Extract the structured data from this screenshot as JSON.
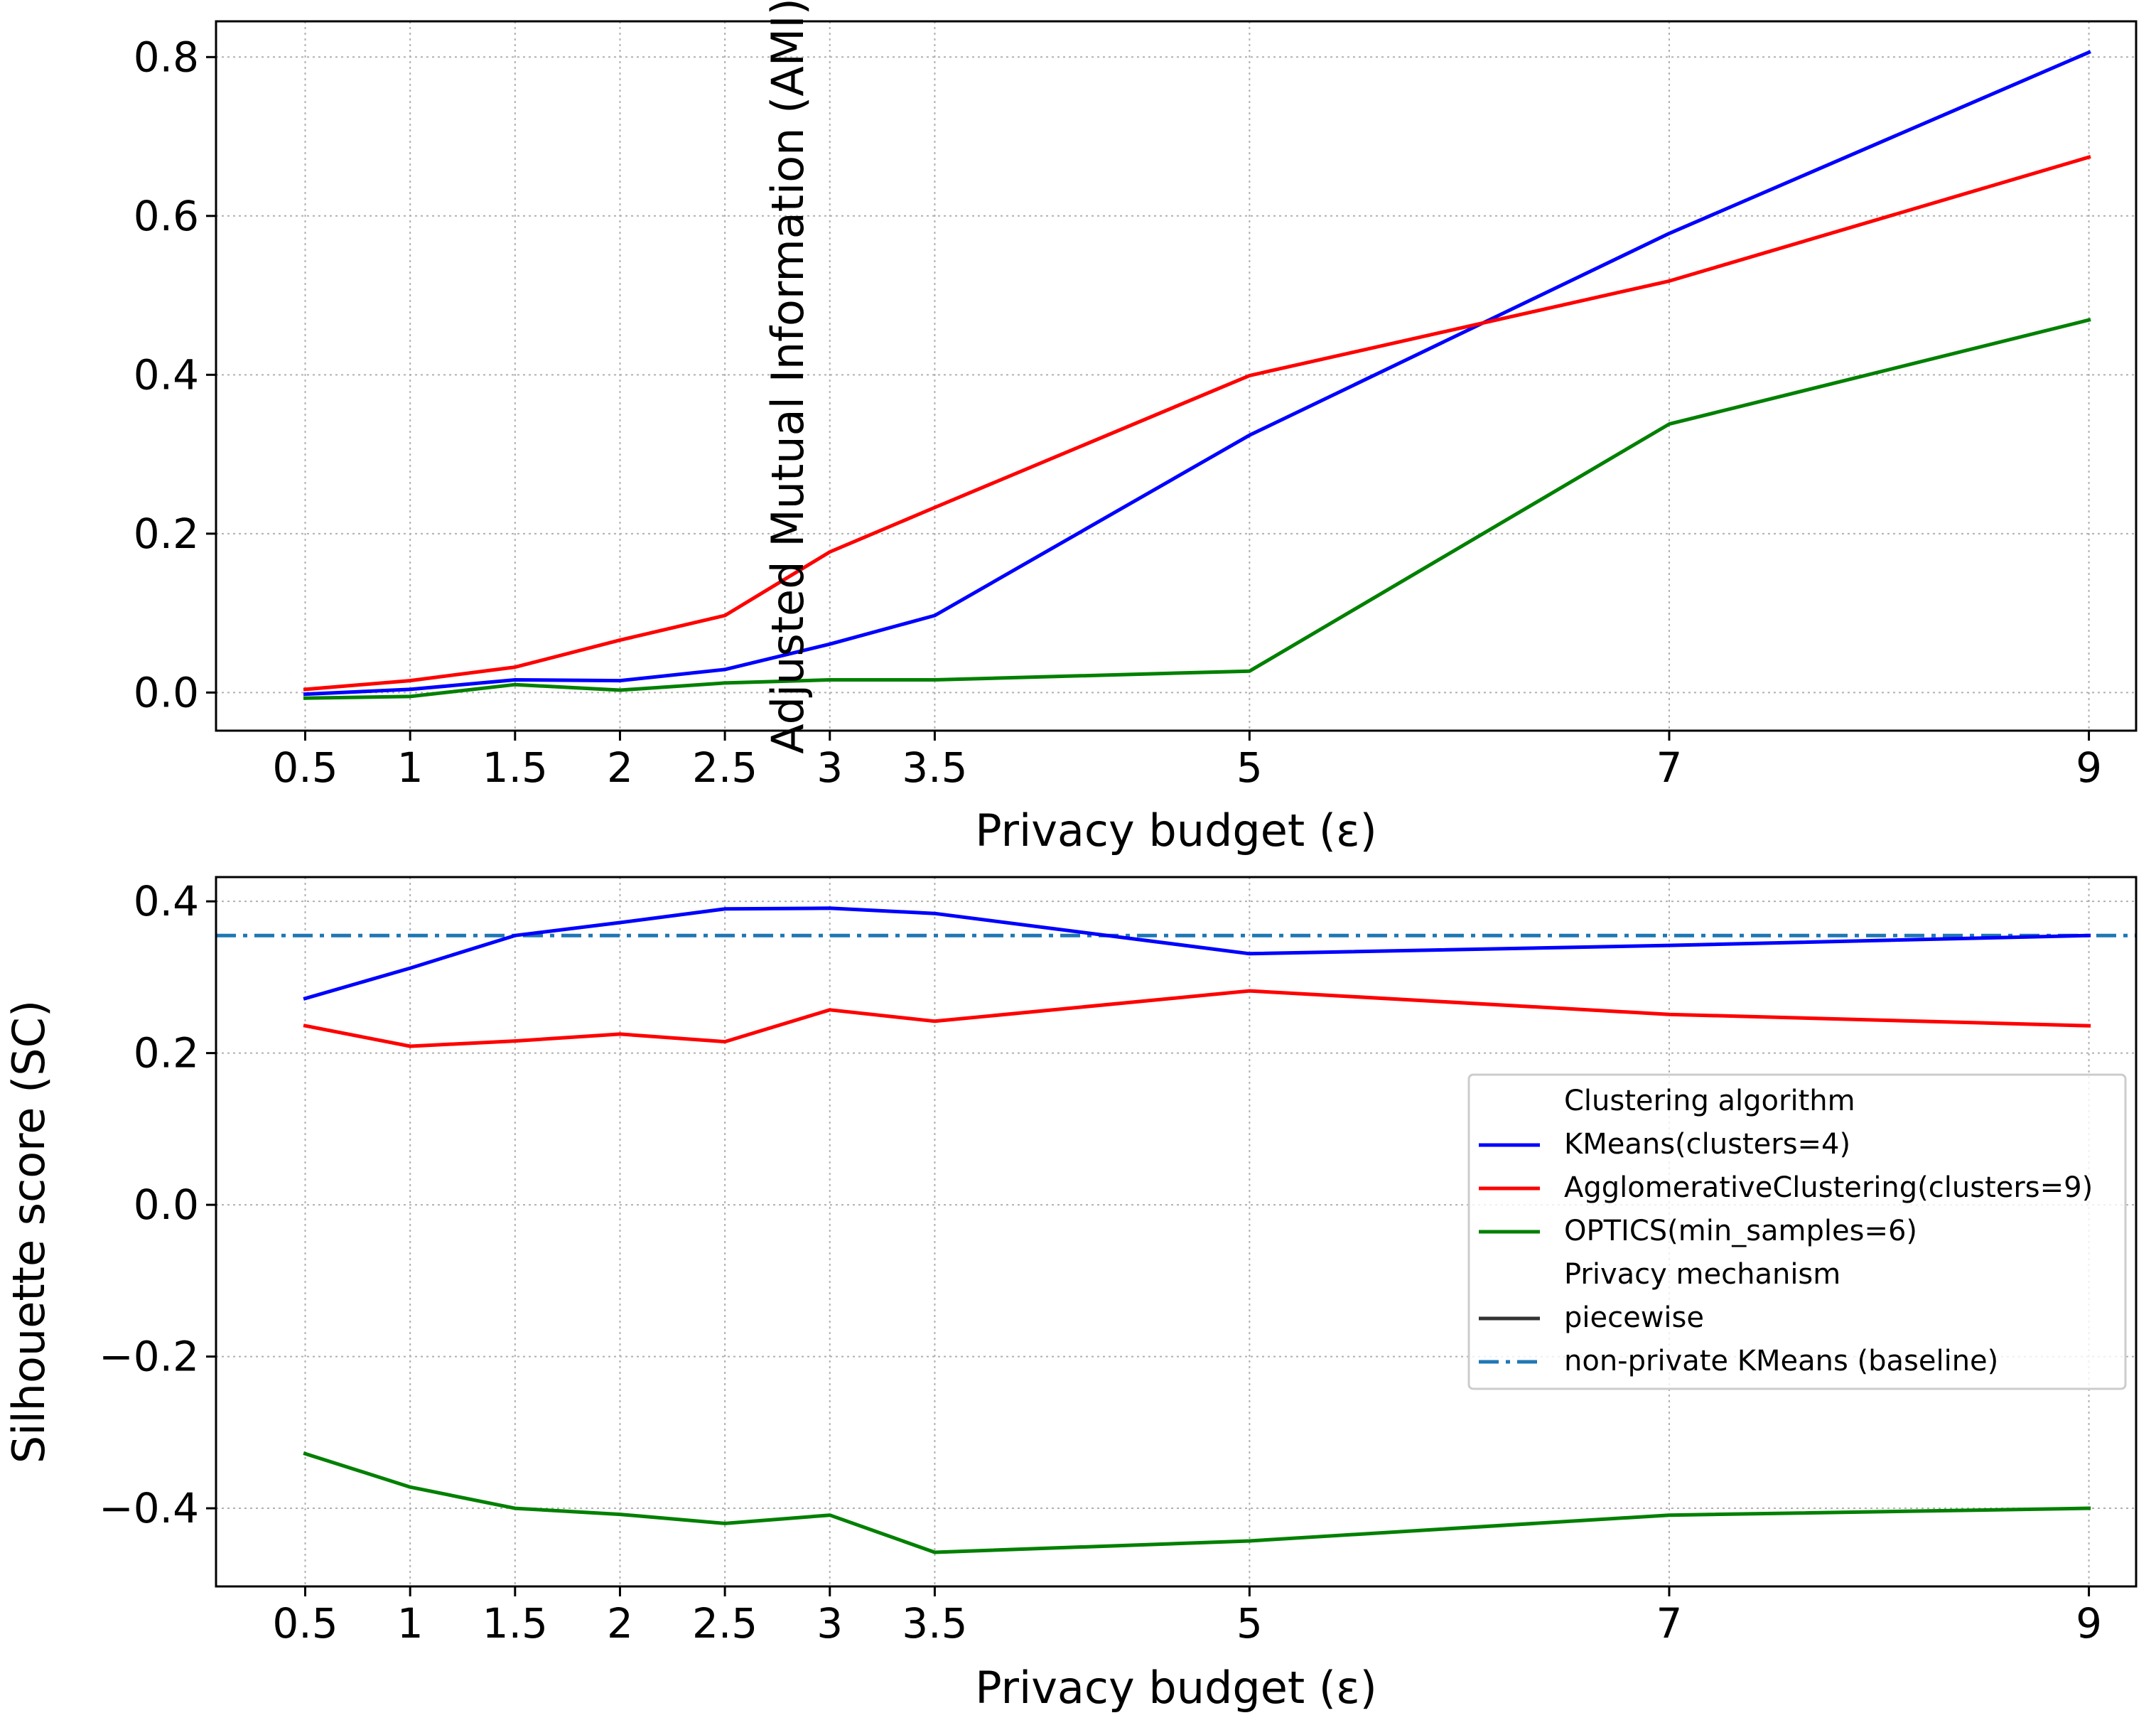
{
  "chart_data": [
    {
      "type": "line",
      "title": "",
      "xlabel": "Privacy budget (ε)",
      "ylabel": "Adjusted Mutual Information (AMI)",
      "x": [
        0.5,
        1,
        1.5,
        2,
        2.5,
        3,
        3.5,
        5,
        7,
        9
      ],
      "x_tick_labels": [
        "0.5",
        "1",
        "1.5",
        "2",
        "2.5",
        "3",
        "3.5",
        "5",
        "7",
        "9"
      ],
      "y_ticks": [
        0.0,
        0.2,
        0.4,
        0.6,
        0.8
      ],
      "y_tick_labels": [
        "0.0",
        "0.2",
        "0.4",
        "0.6",
        "0.8"
      ],
      "xlim": [
        0.075,
        9.225
      ],
      "ylim": [
        -0.048,
        0.845
      ],
      "grid": true,
      "series": [
        {
          "name": "KMeans(clusters=4)",
          "color": "#0000ff",
          "style": "solid",
          "values": [
            -0.002,
            0.004,
            0.016,
            0.015,
            0.029,
            0.061,
            0.097,
            0.324,
            0.578,
            0.806
          ]
        },
        {
          "name": "AgglomerativeClustering(clusters=9)",
          "color": "#ff0000",
          "style": "solid",
          "values": [
            0.004,
            0.015,
            0.032,
            0.066,
            0.097,
            0.177,
            0.233,
            0.399,
            0.518,
            0.674
          ]
        },
        {
          "name": "OPTICS(min_samples=6)",
          "color": "#008000",
          "style": "solid",
          "values": [
            -0.007,
            -0.005,
            0.01,
            0.003,
            0.012,
            0.016,
            0.016,
            0.027,
            0.338,
            0.469
          ]
        }
      ]
    },
    {
      "type": "line",
      "title": "",
      "xlabel": "Privacy budget (ε)",
      "ylabel": "Silhouette score (SC)",
      "x": [
        0.5,
        1,
        1.5,
        2,
        2.5,
        3,
        3.5,
        5,
        7,
        9
      ],
      "x_tick_labels": [
        "0.5",
        "1",
        "1.5",
        "2",
        "2.5",
        "3",
        "3.5",
        "5",
        "7",
        "9"
      ],
      "y_ticks": [
        -0.4,
        -0.2,
        0.0,
        0.2,
        0.4
      ],
      "y_tick_labels": [
        "−0.4",
        "−0.2",
        "0.0",
        "0.2",
        "0.4"
      ],
      "xlim": [
        0.075,
        9.225
      ],
      "ylim": [
        -0.503,
        0.432
      ],
      "grid": true,
      "series": [
        {
          "name": "KMeans(clusters=4)",
          "color": "#0000ff",
          "style": "solid",
          "values": [
            0.272,
            0.312,
            0.355,
            0.372,
            0.39,
            0.391,
            0.384,
            0.331,
            0.342,
            0.355
          ]
        },
        {
          "name": "AgglomerativeClustering(clusters=9)",
          "color": "#ff0000",
          "style": "solid",
          "values": [
            0.236,
            0.209,
            0.216,
            0.225,
            0.215,
            0.257,
            0.242,
            0.282,
            0.251,
            0.236
          ]
        },
        {
          "name": "OPTICS(min_samples=6)",
          "color": "#008000",
          "style": "solid",
          "values": [
            -0.328,
            -0.372,
            -0.4,
            -0.408,
            -0.42,
            -0.409,
            -0.458,
            -0.443,
            -0.409,
            -0.4
          ]
        }
      ],
      "baseline": {
        "name": "non-private KMeans (baseline)",
        "color": "#1f77b4",
        "style": "dashdot",
        "value": 0.355
      },
      "legend": {
        "placement": "center-right",
        "entries": [
          {
            "label": "Clustering algorithm",
            "kind": "header"
          },
          {
            "label": "KMeans(clusters=4)",
            "kind": "line",
            "color": "#0000ff",
            "style": "solid"
          },
          {
            "label": "AgglomerativeClustering(clusters=9)",
            "kind": "line",
            "color": "#ff0000",
            "style": "solid"
          },
          {
            "label": "OPTICS(min_samples=6)",
            "kind": "line",
            "color": "#008000",
            "style": "solid"
          },
          {
            "label": "Privacy mechanism",
            "kind": "header"
          },
          {
            "label": "piecewise",
            "kind": "line",
            "color": "#333333",
            "style": "solid"
          },
          {
            "label": "non-private KMeans (baseline)",
            "kind": "line",
            "color": "#1f77b4",
            "style": "dashdot"
          }
        ]
      }
    }
  ]
}
